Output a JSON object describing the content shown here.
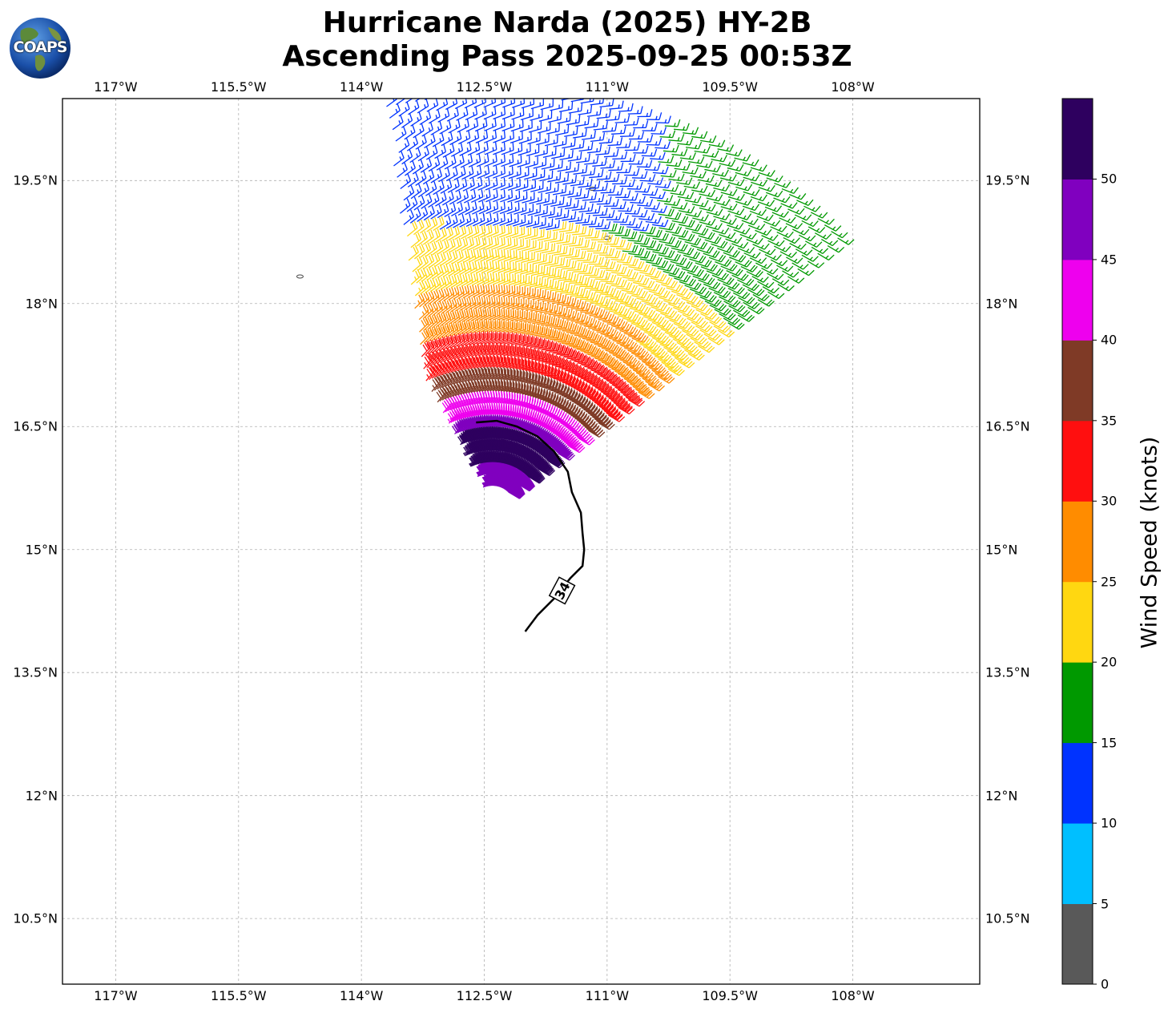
{
  "title": {
    "line1": "Hurricane Narda (2025) HY-2B",
    "line2": "Ascending Pass 2025-09-25 00:53Z"
  },
  "logo": {
    "text": "COAPS",
    "icon": "globe-icon"
  },
  "map": {
    "extent": {
      "lon": [
        -117.65,
        -106.45
      ],
      "lat": [
        9.7,
        20.5
      ]
    },
    "lon_ticks": [
      {
        "value": -117.0,
        "label": "117°W"
      },
      {
        "value": -115.5,
        "label": "115.5°W"
      },
      {
        "value": -114.0,
        "label": "114°W"
      },
      {
        "value": -112.5,
        "label": "112.5°W"
      },
      {
        "value": -111.0,
        "label": "111°W"
      },
      {
        "value": -109.5,
        "label": "109.5°W"
      },
      {
        "value": -108.0,
        "label": "108°W"
      }
    ],
    "lat_ticks": [
      {
        "value": 19.5,
        "label": "19.5°N"
      },
      {
        "value": 18.0,
        "label": "18°N"
      },
      {
        "value": 16.5,
        "label": "16.5°N"
      },
      {
        "value": 15.0,
        "label": "15°N"
      },
      {
        "value": 13.5,
        "label": "13.5°N"
      },
      {
        "value": 12.0,
        "label": "12°N"
      },
      {
        "value": 10.5,
        "label": "10.5°N"
      }
    ],
    "gridlines": true,
    "contour": {
      "label": "34",
      "label_at": [
        -111.55,
        14.5
      ],
      "points": [
        [
          -112.6,
          16.55
        ],
        [
          -112.35,
          16.57
        ],
        [
          -112.1,
          16.5
        ],
        [
          -111.85,
          16.38
        ],
        [
          -111.65,
          16.2
        ],
        [
          -111.48,
          15.95
        ],
        [
          -111.43,
          15.7
        ],
        [
          -111.32,
          15.45
        ],
        [
          -111.3,
          15.2
        ],
        [
          -111.28,
          15.0
        ],
        [
          -111.3,
          14.8
        ],
        [
          -111.45,
          14.65
        ],
        [
          -111.65,
          14.4
        ],
        [
          -111.85,
          14.2
        ],
        [
          -112.0,
          14.0
        ]
      ]
    },
    "islands": [
      {
        "lon": -114.75,
        "lat": 18.33
      },
      {
        "lon": -111.0,
        "lat": 18.8
      },
      {
        "lon": -111.18,
        "lat": 19.4
      }
    ]
  },
  "storm_center": {
    "lon": -112.4,
    "lat": 15.55
  },
  "colorbar": {
    "label": "Wind Speed (knots)",
    "ticks": [
      "0",
      "5",
      "10",
      "15",
      "20",
      "25",
      "30",
      "35",
      "40",
      "45",
      "50"
    ],
    "bands": [
      {
        "min": 0,
        "max": 5,
        "color": "#595959"
      },
      {
        "min": 5,
        "max": 10,
        "color": "#00bfff"
      },
      {
        "min": 10,
        "max": 15,
        "color": "#0033ff"
      },
      {
        "min": 15,
        "max": 20,
        "color": "#009900"
      },
      {
        "min": 20,
        "max": 25,
        "color": "#ffd711"
      },
      {
        "min": 25,
        "max": 30,
        "color": "#ff8c00"
      },
      {
        "min": 30,
        "max": 35,
        "color": "#ff0f0f"
      },
      {
        "min": 35,
        "max": 40,
        "color": "#7f3a26"
      },
      {
        "min": 40,
        "max": 45,
        "color": "#ee00ee"
      },
      {
        "min": 45,
        "max": 50,
        "color": "#8000bf"
      },
      {
        "min": 50,
        "max": 55,
        "color": "#2e005f"
      }
    ]
  }
}
